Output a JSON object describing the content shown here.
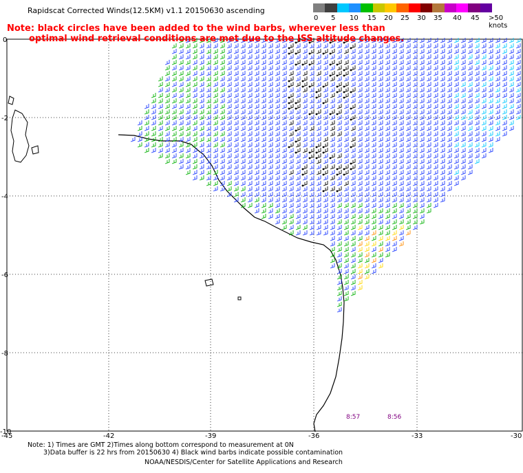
{
  "title": "Rapidscat Corrected Winds(12.5KM) v1.1 20150630 ascending",
  "note_line1": "Note: black circles have been added to the wind barbs, wherever less than",
  "note_line2": "optimal wind retrieval conditions are met due to the ISS altitude changes.",
  "scale": {
    "labels": [
      "0",
      "5",
      "10",
      "15",
      "20",
      "25",
      "30",
      "35",
      "40",
      "45",
      ">50 knots"
    ],
    "colors": [
      "#808080",
      "#404040",
      "#00c8ff",
      "#1e90ff",
      "#00c000",
      "#c8c800",
      "#ffc800",
      "#ff6400",
      "#ff0000",
      "#800000",
      "#b4783c",
      "#c800c8",
      "#ff00ff",
      "#800080",
      "#6400a0"
    ]
  },
  "axes": {
    "x_ticks": [
      "-45",
      "-42",
      "-39",
      "-36",
      "-33",
      "-30"
    ],
    "y_ticks": [
      "0",
      "-2",
      "-4",
      "-6",
      "-8",
      "-10"
    ]
  },
  "timestamps": [
    "8:57",
    "8:56"
  ],
  "footer": {
    "line1": "Note: 1) Times are GMT 2)Times along bottom correspond to measurement at 0N",
    "line2": "3)Data buffer is 22 hrs from 20150630 4) Black wind barbs indicate possible contamination",
    "line3": "NOAA/NESDIS/Center for Satellite Applications and Research"
  }
}
